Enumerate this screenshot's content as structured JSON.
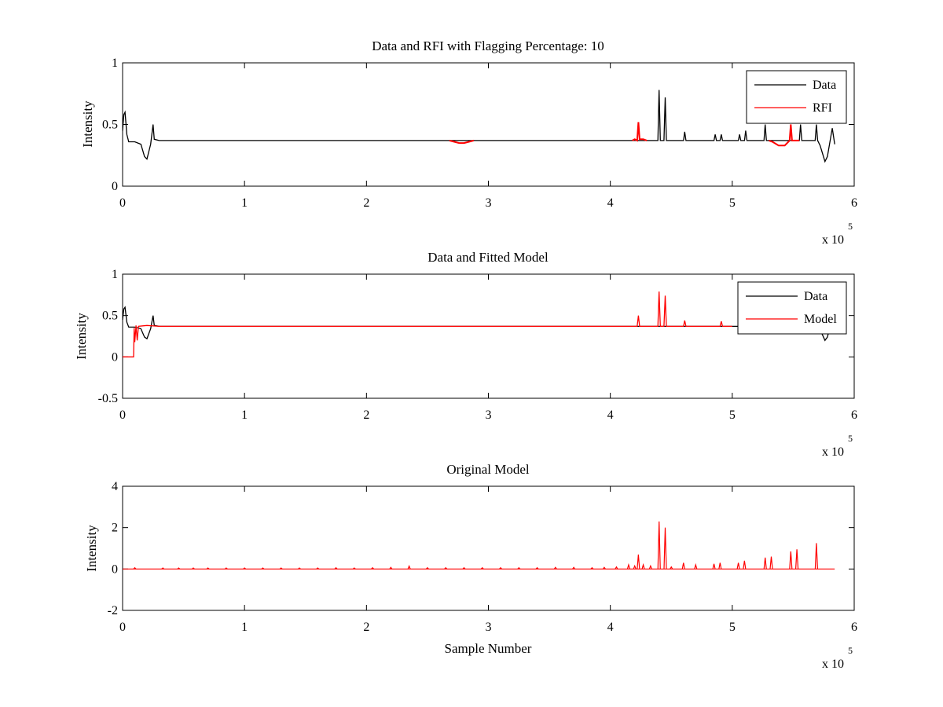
{
  "figure": {
    "background": "#ffffff",
    "data_color": "#000000",
    "rfi_color": "#ff0000",
    "model_color": "#ff0000"
  },
  "chart_data": [
    {
      "type": "line",
      "title": "Data and RFI with Flagging Percentage: 10",
      "xlabel": "",
      "ylabel": "Intensity",
      "xlim": [
        0,
        6
      ],
      "ylim": [
        0,
        1
      ],
      "x_multiplier": "x 10",
      "x_exponent": "5",
      "xticks": [
        0,
        1,
        2,
        3,
        4,
        5,
        6
      ],
      "xtick_labels": [
        "0",
        "1",
        "2",
        "3",
        "4",
        "5",
        "6"
      ],
      "yticks": [
        0,
        0.5,
        1
      ],
      "ytick_labels": [
        "0",
        "0.5",
        "1"
      ],
      "legend": {
        "position": "top-right",
        "entries": [
          "Data",
          "RFI"
        ]
      },
      "series": [
        {
          "name": "Data",
          "color": "#000000",
          "points": [
            [
              0,
              0.45
            ],
            [
              0.01,
              0.58
            ],
            [
              0.02,
              0.6
            ],
            [
              0.035,
              0.42
            ],
            [
              0.05,
              0.36
            ],
            [
              0.1,
              0.36
            ],
            [
              0.15,
              0.34
            ],
            [
              0.18,
              0.24
            ],
            [
              0.2,
              0.22
            ],
            [
              0.23,
              0.34
            ],
            [
              0.25,
              0.5
            ],
            [
              0.26,
              0.38
            ],
            [
              0.3,
              0.37
            ],
            [
              0.5,
              0.37
            ],
            [
              1.0,
              0.37
            ],
            [
              1.5,
              0.37
            ],
            [
              2.0,
              0.37
            ],
            [
              2.5,
              0.37
            ],
            [
              2.68,
              0.37
            ],
            [
              2.9,
              0.37
            ],
            [
              3.5,
              0.37
            ],
            [
              4.0,
              0.37
            ],
            [
              4.18,
              0.37
            ],
            [
              4.28,
              0.37
            ],
            [
              4.39,
              0.37
            ],
            [
              4.4,
              0.78
            ],
            [
              4.41,
              0.37
            ],
            [
              4.44,
              0.37
            ],
            [
              4.45,
              0.72
            ],
            [
              4.46,
              0.37
            ],
            [
              4.6,
              0.37
            ],
            [
              4.61,
              0.44
            ],
            [
              4.62,
              0.37
            ],
            [
              4.85,
              0.37
            ],
            [
              4.86,
              0.42
            ],
            [
              4.87,
              0.37
            ],
            [
              4.9,
              0.37
            ],
            [
              4.91,
              0.42
            ],
            [
              4.92,
              0.37
            ],
            [
              5.05,
              0.37
            ],
            [
              5.06,
              0.42
            ],
            [
              5.07,
              0.37
            ],
            [
              5.1,
              0.37
            ],
            [
              5.11,
              0.45
            ],
            [
              5.12,
              0.37
            ],
            [
              5.26,
              0.37
            ],
            [
              5.27,
              0.5
            ],
            [
              5.28,
              0.37
            ],
            [
              5.3,
              0.37
            ],
            [
              5.55,
              0.37
            ],
            [
              5.56,
              0.5
            ],
            [
              5.57,
              0.37
            ],
            [
              5.68,
              0.37
            ],
            [
              5.69,
              0.5
            ],
            [
              5.7,
              0.37
            ],
            [
              5.72,
              0.33
            ],
            [
              5.76,
              0.2
            ],
            [
              5.78,
              0.24
            ],
            [
              5.82,
              0.47
            ],
            [
              5.84,
              0.34
            ]
          ]
        },
        {
          "name": "RFI",
          "color": "#ff0000",
          "segments": [
            [
              [
                2.68,
                0.37
              ],
              [
                2.72,
                0.36
              ],
              [
                2.76,
                0.35
              ],
              [
                2.8,
                0.35
              ],
              [
                2.84,
                0.36
              ],
              [
                2.88,
                0.37
              ]
            ],
            [
              [
                4.18,
                0.37
              ],
              [
                4.2,
                0.38
              ],
              [
                4.22,
                0.37
              ],
              [
                4.23,
                0.52
              ],
              [
                4.24,
                0.38
              ],
              [
                4.27,
                0.38
              ],
              [
                4.3,
                0.37
              ]
            ],
            [
              [
                5.3,
                0.37
              ],
              [
                5.33,
                0.36
              ],
              [
                5.38,
                0.33
              ],
              [
                5.43,
                0.33
              ],
              [
                5.47,
                0.37
              ],
              [
                5.48,
                0.5
              ],
              [
                5.49,
                0.37
              ],
              [
                5.53,
                0.37
              ],
              [
                5.55,
                0.37
              ]
            ]
          ]
        }
      ]
    },
    {
      "type": "line",
      "title": "Data and Fitted Model",
      "xlabel": "",
      "ylabel": "Intensity",
      "xlim": [
        0,
        6
      ],
      "ylim": [
        -0.5,
        1
      ],
      "x_multiplier": "x 10",
      "x_exponent": "5",
      "xticks": [
        0,
        1,
        2,
        3,
        4,
        5,
        6
      ],
      "xtick_labels": [
        "0",
        "1",
        "2",
        "3",
        "4",
        "5",
        "6"
      ],
      "yticks": [
        -0.5,
        0,
        0.5,
        1
      ],
      "ytick_labels": [
        "-0.5",
        "0",
        "0.5",
        "1"
      ],
      "legend": {
        "position": "top-right",
        "entries": [
          "Data",
          "Model"
        ]
      },
      "series": [
        {
          "name": "Data",
          "color": "#000000",
          "points": [
            [
              0,
              0.45
            ],
            [
              0.01,
              0.58
            ],
            [
              0.02,
              0.6
            ],
            [
              0.035,
              0.42
            ],
            [
              0.05,
              0.36
            ],
            [
              0.1,
              0.36
            ],
            [
              0.15,
              0.34
            ],
            [
              0.18,
              0.24
            ],
            [
              0.2,
              0.22
            ],
            [
              0.23,
              0.34
            ],
            [
              0.25,
              0.5
            ],
            [
              0.26,
              0.38
            ],
            [
              0.3,
              0.37
            ],
            [
              1.0,
              0.37
            ],
            [
              2.0,
              0.37
            ],
            [
              3.0,
              0.37
            ],
            [
              4.0,
              0.37
            ],
            [
              5.0,
              0.37
            ],
            [
              5.7,
              0.37
            ],
            [
              5.72,
              0.33
            ],
            [
              5.76,
              0.2
            ],
            [
              5.78,
              0.24
            ],
            [
              5.82,
              0.47
            ],
            [
              5.84,
              0.34
            ]
          ]
        },
        {
          "name": "Model",
          "color": "#ff0000",
          "points": [
            [
              0,
              0.0
            ],
            [
              0.09,
              0.0
            ],
            [
              0.095,
              0.35
            ],
            [
              0.1,
              0.18
            ],
            [
              0.11,
              0.38
            ],
            [
              0.12,
              0.2
            ],
            [
              0.13,
              0.37
            ],
            [
              0.2,
              0.38
            ],
            [
              0.3,
              0.37
            ],
            [
              1.0,
              0.37
            ],
            [
              2.0,
              0.37
            ],
            [
              3.0,
              0.37
            ],
            [
              4.0,
              0.37
            ],
            [
              4.22,
              0.37
            ],
            [
              4.23,
              0.5
            ],
            [
              4.24,
              0.37
            ],
            [
              4.39,
              0.37
            ],
            [
              4.4,
              0.79
            ],
            [
              4.41,
              0.37
            ],
            [
              4.44,
              0.37
            ],
            [
              4.45,
              0.74
            ],
            [
              4.46,
              0.37
            ],
            [
              4.6,
              0.37
            ],
            [
              4.61,
              0.44
            ],
            [
              4.62,
              0.37
            ],
            [
              4.9,
              0.37
            ],
            [
              4.91,
              0.43
            ],
            [
              4.92,
              0.37
            ],
            [
              5.0,
              0.37
            ]
          ]
        }
      ]
    },
    {
      "type": "line",
      "title": "Original Model",
      "xlabel": "Sample Number",
      "ylabel": "Intensity",
      "xlim": [
        0,
        6
      ],
      "ylim": [
        -2,
        4
      ],
      "x_multiplier": "x 10",
      "x_exponent": "5",
      "xticks": [
        0,
        1,
        2,
        3,
        4,
        5,
        6
      ],
      "xtick_labels": [
        "0",
        "1",
        "2",
        "3",
        "4",
        "5",
        "6"
      ],
      "yticks": [
        -2,
        0,
        2,
        4
      ],
      "ytick_labels": [
        "-2",
        "0",
        "2",
        "4"
      ],
      "legend": null,
      "series": [
        {
          "name": "Original Model",
          "color": "#ff0000",
          "baseline": 0,
          "spikes": [
            [
              0.1,
              0.06
            ],
            [
              0.33,
              0.05
            ],
            [
              0.46,
              0.05
            ],
            [
              0.58,
              0.05
            ],
            [
              0.7,
              0.05
            ],
            [
              0.85,
              0.05
            ],
            [
              1.0,
              0.05
            ],
            [
              1.15,
              0.05
            ],
            [
              1.3,
              0.05
            ],
            [
              1.45,
              0.05
            ],
            [
              1.6,
              0.05
            ],
            [
              1.75,
              0.06
            ],
            [
              1.9,
              0.05
            ],
            [
              2.05,
              0.06
            ],
            [
              2.2,
              0.08
            ],
            [
              2.35,
              0.14
            ],
            [
              2.5,
              0.06
            ],
            [
              2.65,
              0.06
            ],
            [
              2.8,
              0.06
            ],
            [
              2.95,
              0.06
            ],
            [
              3.1,
              0.06
            ],
            [
              3.25,
              0.06
            ],
            [
              3.4,
              0.06
            ],
            [
              3.55,
              0.08
            ],
            [
              3.7,
              0.08
            ],
            [
              3.85,
              0.06
            ],
            [
              3.95,
              0.08
            ],
            [
              4.05,
              0.1
            ],
            [
              4.15,
              0.2
            ],
            [
              4.2,
              0.15
            ],
            [
              4.23,
              0.7
            ],
            [
              4.27,
              0.2
            ],
            [
              4.33,
              0.15
            ],
            [
              4.4,
              2.3
            ],
            [
              4.45,
              2.0
            ],
            [
              4.5,
              0.1
            ],
            [
              4.6,
              0.3
            ],
            [
              4.7,
              0.2
            ],
            [
              4.85,
              0.25
            ],
            [
              4.9,
              0.3
            ],
            [
              5.05,
              0.3
            ],
            [
              5.1,
              0.4
            ],
            [
              5.27,
              0.55
            ],
            [
              5.32,
              0.6
            ],
            [
              5.48,
              0.85
            ],
            [
              5.53,
              0.95
            ],
            [
              5.69,
              1.25
            ]
          ],
          "x_end": 5.84
        }
      ]
    }
  ]
}
